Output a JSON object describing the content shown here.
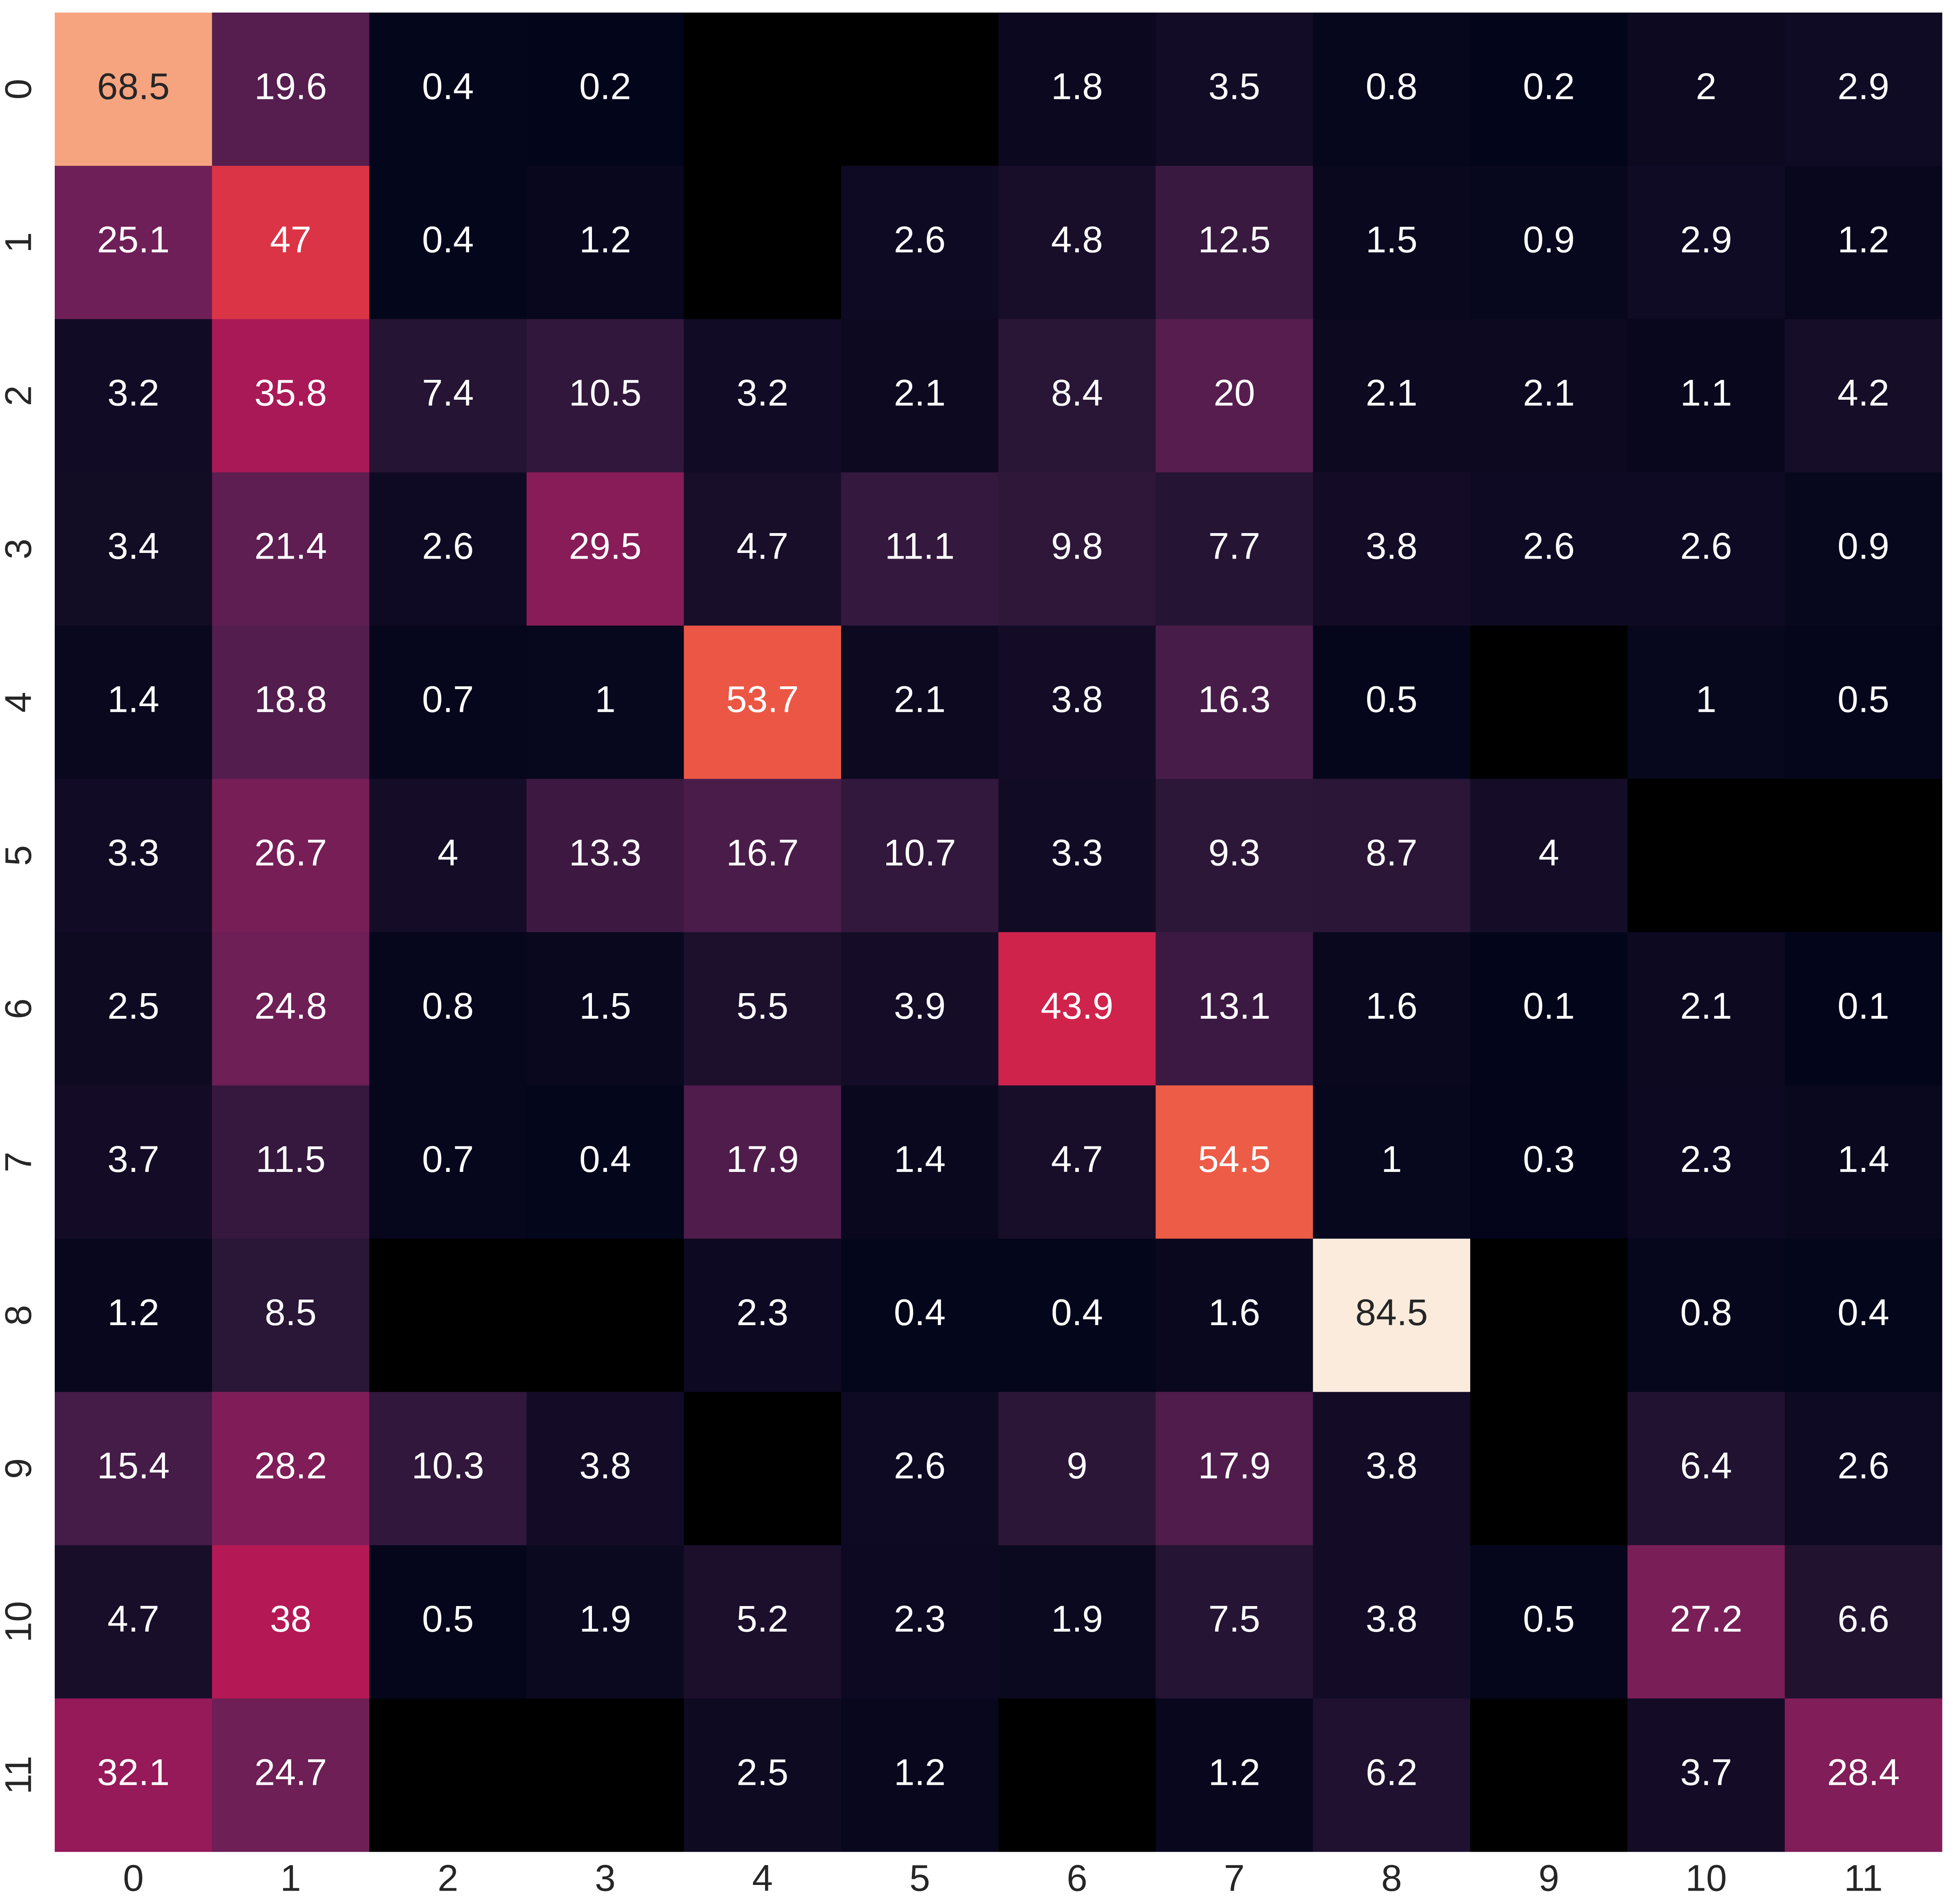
{
  "chart_data": {
    "type": "heatmap",
    "x_categories": [
      0,
      1,
      2,
      3,
      4,
      5,
      6,
      7,
      8,
      9,
      10,
      11
    ],
    "y_categories": [
      0,
      1,
      2,
      3,
      4,
      5,
      6,
      7,
      8,
      9,
      10,
      11
    ],
    "values": [
      [
        68.5,
        19.6,
        0.4,
        0.2,
        null,
        null,
        1.8,
        3.5,
        0.8,
        0.2,
        2,
        2.9
      ],
      [
        25.1,
        47,
        0.4,
        1.2,
        null,
        2.6,
        4.8,
        12.5,
        1.5,
        0.9,
        2.9,
        1.2
      ],
      [
        3.2,
        35.8,
        7.4,
        10.5,
        3.2,
        2.1,
        8.4,
        20,
        2.1,
        2.1,
        1.1,
        4.2
      ],
      [
        3.4,
        21.4,
        2.6,
        29.5,
        4.7,
        11.1,
        9.8,
        7.7,
        3.8,
        2.6,
        2.6,
        0.9
      ],
      [
        1.4,
        18.8,
        0.7,
        1,
        53.7,
        2.1,
        3.8,
        16.3,
        0.5,
        null,
        1,
        0.5
      ],
      [
        3.3,
        26.7,
        4,
        13.3,
        16.7,
        10.7,
        3.3,
        9.3,
        8.7,
        4,
        null,
        null
      ],
      [
        2.5,
        24.8,
        0.8,
        1.5,
        5.5,
        3.9,
        43.9,
        13.1,
        1.6,
        0.1,
        2.1,
        0.1
      ],
      [
        3.7,
        11.5,
        0.7,
        0.4,
        17.9,
        1.4,
        4.7,
        54.5,
        1,
        0.3,
        2.3,
        1.4
      ],
      [
        1.2,
        8.5,
        null,
        null,
        2.3,
        0.4,
        0.4,
        1.6,
        84.5,
        null,
        0.8,
        0.4
      ],
      [
        15.4,
        28.2,
        10.3,
        3.8,
        null,
        2.6,
        9,
        17.9,
        3.8,
        null,
        6.4,
        2.6
      ],
      [
        4.7,
        38,
        0.5,
        1.9,
        5.2,
        2.3,
        1.9,
        7.5,
        3.8,
        0.5,
        27.2,
        6.6
      ],
      [
        32.1,
        24.7,
        null,
        null,
        2.5,
        1.2,
        null,
        1.2,
        6.2,
        null,
        3.7,
        28.4
      ]
    ],
    "colormap": [
      "#03051a",
      "#2a1637",
      "#4b1c4b",
      "#701f57",
      "#a0185a",
      "#cb1b4f",
      "#e8473f",
      "#f37651",
      "#f6a07b",
      "#f8c8a8",
      "#faebdd"
    ],
    "missing_color": "#000000"
  }
}
